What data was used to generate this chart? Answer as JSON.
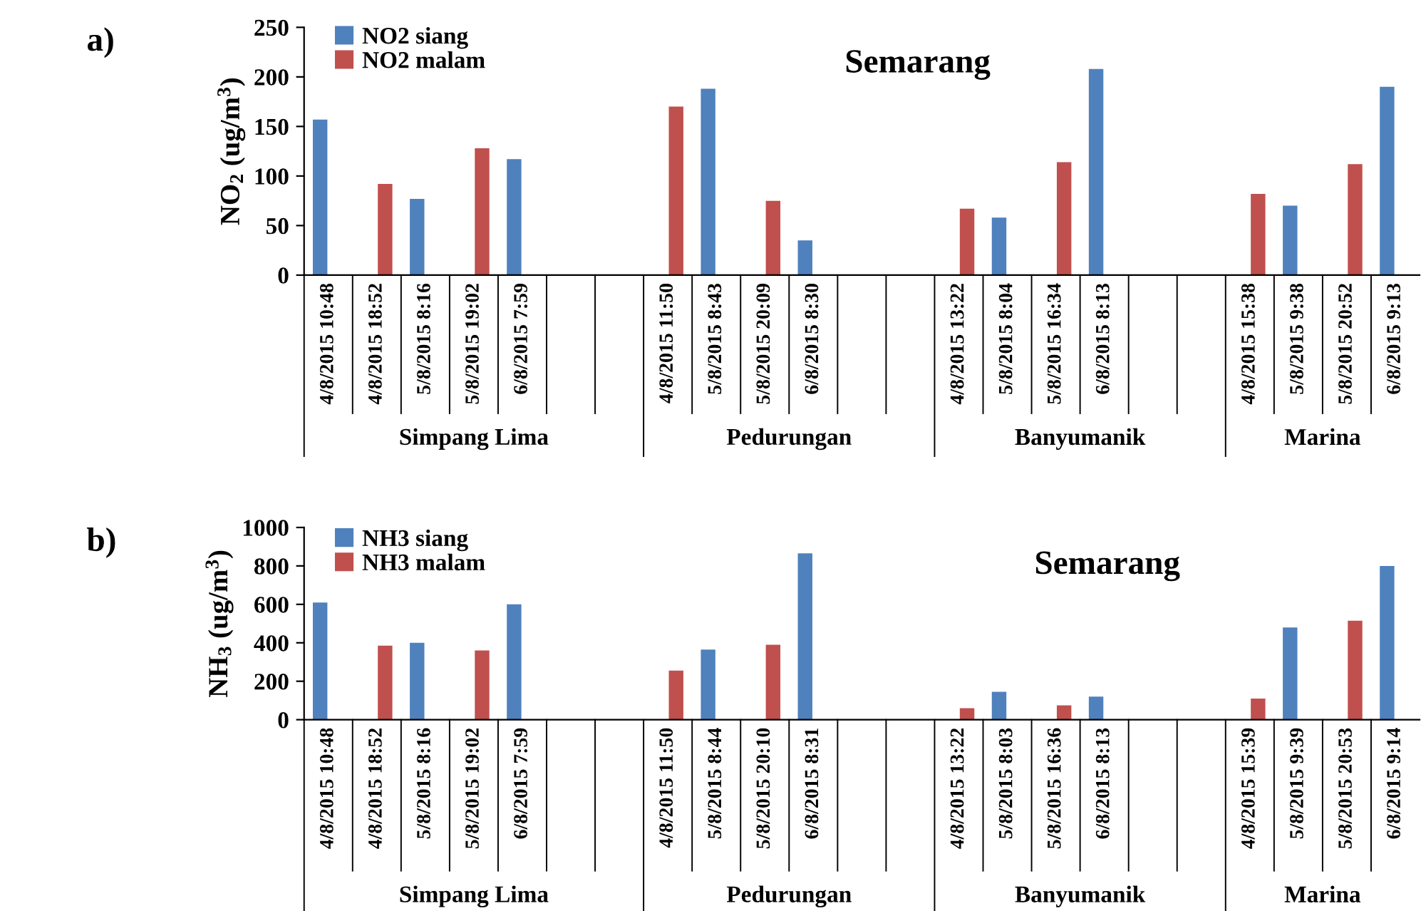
{
  "chart_data": [
    {
      "type": "bar",
      "title": "Semarang",
      "ylabel": "NO$_{2}$ (ug/m$^{3}$)",
      "legend": "top left",
      "grid": false,
      "categories": [
        "4/8/2015 10:48",
        "4/8/2015 18:52",
        "5/8/2015 8:16",
        "5/8/2015 19:02",
        "6/8/2015 7:59",
        null,
        null,
        "4/8/2015 11:50",
        "5/8/2015 8:43",
        "5/8/2015 20:09",
        "6/8/2015 8:30",
        null,
        null,
        "4/8/2015 13:22",
        "5/8/2015 8:04",
        "5/8/2015 16:34",
        "6/8/2015 8:13",
        null,
        null,
        "4/8/2015 15:38",
        "5/8/2015 9:38",
        "5/8/2015 20:52",
        "6/8/2015 9:13"
      ],
      "series": [
        {
          "name": "NO2 siang",
          "color": "#4f81bd",
          "values": [
            157,
            null,
            77,
            null,
            117,
            null,
            null,
            null,
            188,
            null,
            35,
            null,
            null,
            null,
            58,
            null,
            208,
            null,
            null,
            null,
            70,
            null,
            190
          ]
        },
        {
          "name": "NO2 malam",
          "color": "#c0504d",
          "values": [
            null,
            92,
            null,
            128,
            null,
            null,
            null,
            170,
            null,
            75,
            null,
            null,
            null,
            67,
            null,
            114,
            null,
            null,
            null,
            82,
            null,
            112,
            null
          ]
        }
      ],
      "ylim": [
        0,
        250
      ],
      "yticks": [
        0,
        50,
        100,
        150,
        200,
        250
      ],
      "annotations": [
        "a)",
        "Simpang Lima",
        "Pedurungan",
        "Banyumanik",
        "Marina"
      ]
    },
    {
      "type": "bar",
      "title": "Semarang",
      "ylabel": "NH$_{3}$ (ug/m$^{3}$)",
      "legend": "top left",
      "grid": false,
      "categories": [
        "4/8/2015 10:48",
        "4/8/2015 18:52",
        "5/8/2015 8:16",
        "5/8/2015 19:02",
        "6/8/2015 7:59",
        null,
        null,
        "4/8/2015 11:50",
        "5/8/2015 8:44",
        "5/8/2015 20:10",
        "6/8/2015 8:31",
        null,
        null,
        "4/8/2015 13:22",
        "5/8/2015 8:03",
        "5/8/2015 16:36",
        "6/8/2015 8:13",
        null,
        null,
        "4/8/2015 15:39",
        "5/8/2015 9:39",
        "5/8/2015 20:53",
        "6/8/2015 9:14"
      ],
      "series": [
        {
          "name": "NH3 siang",
          "color": "#4f81bd",
          "values": [
            610,
            null,
            400,
            null,
            600,
            null,
            null,
            null,
            365,
            null,
            865,
            null,
            null,
            null,
            145,
            null,
            120,
            null,
            null,
            null,
            480,
            null,
            800
          ]
        },
        {
          "name": "NH3 malam",
          "color": "#c0504d",
          "values": [
            null,
            385,
            null,
            360,
            null,
            null,
            null,
            255,
            null,
            390,
            null,
            null,
            null,
            60,
            null,
            75,
            null,
            null,
            null,
            110,
            null,
            515,
            null
          ]
        }
      ],
      "ylim": [
        0,
        1000
      ],
      "yticks": [
        0,
        200,
        400,
        600,
        800,
        1000
      ],
      "annotations": [
        "b)",
        "Simpang Lima",
        "Pedurungan",
        "Banyumanik",
        "Marina"
      ]
    }
  ]
}
